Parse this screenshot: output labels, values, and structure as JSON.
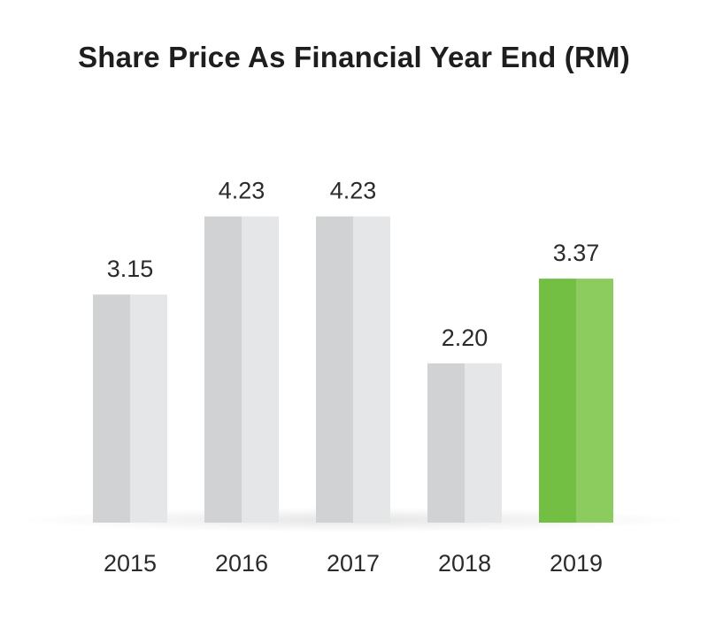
{
  "chart_data": {
    "type": "bar",
    "title": "Share Price As Financial Year End (RM)",
    "categories": [
      "2015",
      "2016",
      "2017",
      "2018",
      "2019"
    ],
    "values": [
      3.15,
      4.23,
      4.23,
      2.2,
      3.37
    ],
    "value_labels": [
      "3.15",
      "4.23",
      "4.23",
      "2.20",
      "3.37"
    ],
    "highlight_index": 4,
    "ylim": [
      0,
      5.35
    ],
    "grid": false,
    "colors": {
      "bar_left": "#d1d2d4",
      "bar_right": "#e5e6e7",
      "highlight_left": "#72bf44",
      "highlight_right": "#8ccb5e",
      "text": "#2b2b2b"
    }
  }
}
